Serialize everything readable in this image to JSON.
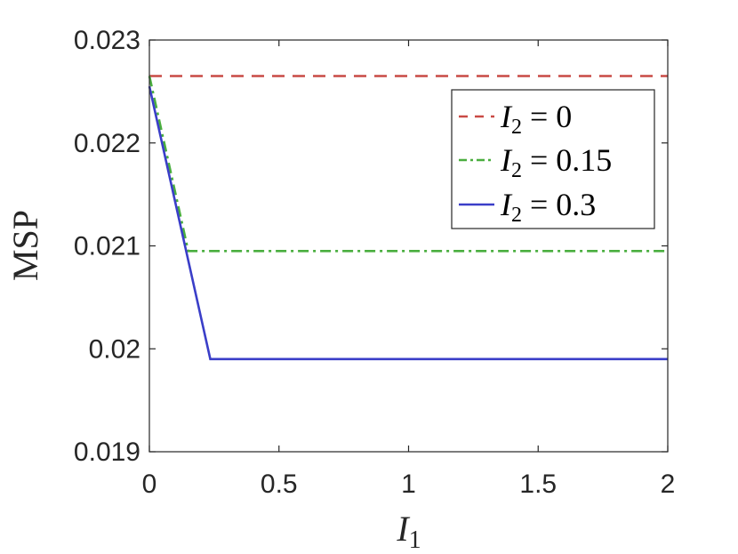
{
  "chart_data": {
    "type": "line",
    "xlabel": "I1",
    "ylabel": "MSP",
    "xlim": [
      0,
      2
    ],
    "ylim": [
      0.019,
      0.023
    ],
    "xticks": [
      "0",
      "0.5",
      "1",
      "1.5",
      "2"
    ],
    "yticks": [
      "0.019",
      "0.02",
      "0.021",
      "0.022",
      "0.023"
    ],
    "grid": false,
    "legend_position": "top-right",
    "series": [
      {
        "name": "I2 = 0",
        "legend_var": "I",
        "legend_sub": "2",
        "legend_rest": " = 0",
        "color": "#c94a45",
        "style": "dashed",
        "x": [
          0,
          2
        ],
        "y": [
          0.02265,
          0.02265
        ]
      },
      {
        "name": "I2 = 0.15",
        "legend_var": "I",
        "legend_sub": "2",
        "legend_rest": " = 0.15",
        "color": "#4aae3f",
        "style": "dashdot",
        "x": [
          0,
          0.15,
          2
        ],
        "y": [
          0.02265,
          0.02095,
          0.02095
        ]
      },
      {
        "name": "I2 = 0.3",
        "legend_var": "I",
        "legend_sub": "2",
        "legend_rest": " = 0.3",
        "color": "#3a3ec8",
        "style": "solid",
        "x": [
          0,
          0.235,
          2
        ],
        "y": [
          0.02255,
          0.0199,
          0.0199
        ]
      }
    ]
  }
}
